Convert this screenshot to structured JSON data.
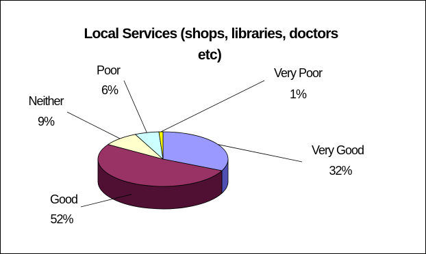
{
  "chart_data": {
    "type": "pie",
    "style": "3d",
    "title_lines": [
      "Local Services (shops, libraries, doctors",
      "etc)"
    ],
    "slices": [
      {
        "name": "Very Good",
        "value": 32,
        "label": "32%",
        "color": "#9999ff",
        "side_color": "#5050b4"
      },
      {
        "name": "Good",
        "value": 52,
        "label": "52%",
        "color": "#993366",
        "side_color": "#4f1034"
      },
      {
        "name": "Neither",
        "value": 9,
        "label": "9%",
        "color": "#ffffcc",
        "side_color": "#c8c89a"
      },
      {
        "name": "Poor",
        "value": 6,
        "label": "6%",
        "color": "#ccffff",
        "side_color": "#94c8c8"
      },
      {
        "name": "Very Poor",
        "value": 1,
        "label": "1%",
        "color": "#ffff00",
        "side_color": "#b4b400"
      }
    ],
    "legend": "none",
    "data_labels": "category name and percentage"
  }
}
